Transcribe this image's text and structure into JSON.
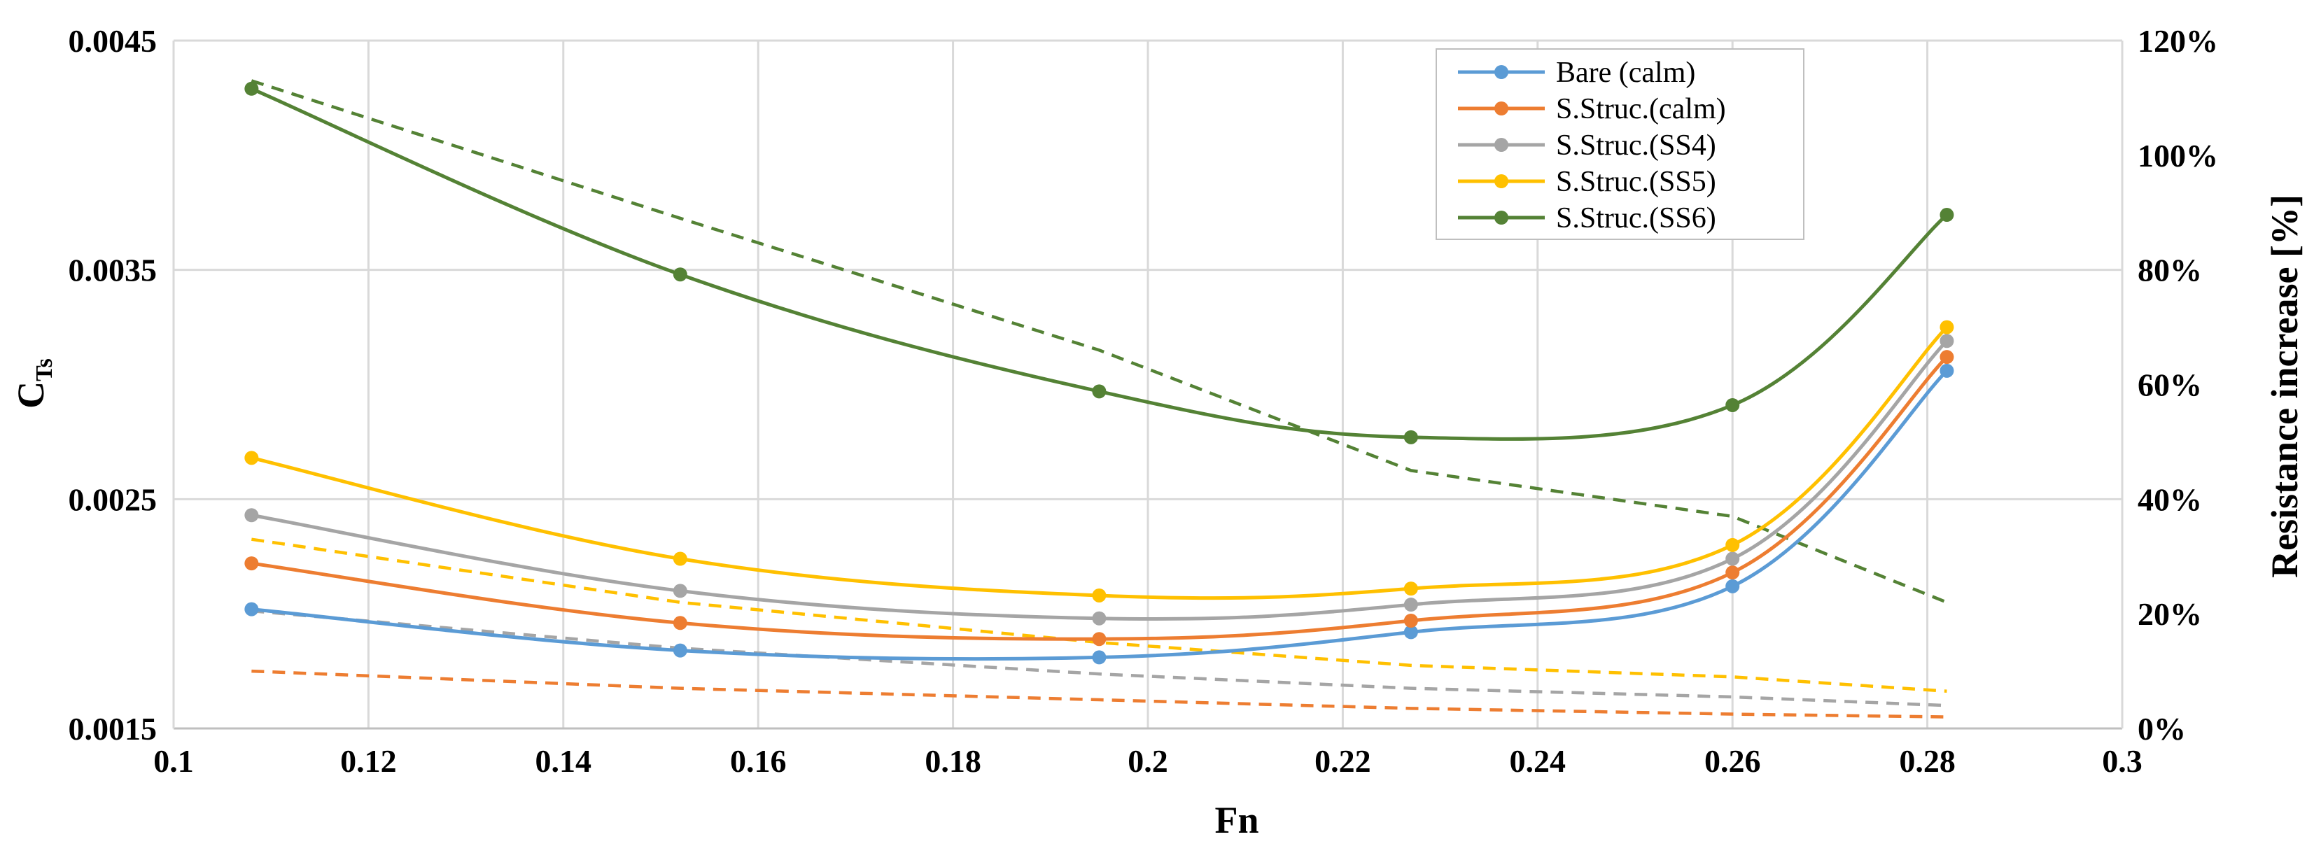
{
  "chart_data": {
    "type": "line",
    "x_axis": {
      "label": "Fn",
      "range": [
        0.1,
        0.3
      ],
      "ticks": [
        "0.1",
        "0.12",
        "0.14",
        "0.16",
        "0.18",
        "0.2",
        "0.22",
        "0.24",
        "0.26",
        "0.28",
        "0.3"
      ]
    },
    "y_left": {
      "label_main": "C",
      "label_sub": "Ts",
      "range": [
        0.0015,
        0.0045
      ],
      "ticks": [
        "0.0015",
        "0.0025",
        "0.0035",
        "0.0045"
      ]
    },
    "y_right": {
      "label": "Resistance increase [%]",
      "range": [
        0,
        120
      ],
      "ticks": [
        "0%",
        "20%",
        "40%",
        "60%",
        "80%",
        "100%",
        "120%"
      ]
    },
    "grid": true,
    "legend": {
      "placement": "top-right"
    },
    "series": [
      {
        "name": "Bare (calm)",
        "color": "#5b9bd5",
        "axis": "left",
        "style": "solid-markers",
        "x": [
          0.108,
          0.152,
          0.195,
          0.227,
          0.26,
          0.282
        ],
        "y": [
          0.00202,
          0.00184,
          0.00181,
          0.00192,
          0.00212,
          0.00306
        ]
      },
      {
        "name": "S.Struc.(calm)",
        "color": "#ed7d31",
        "axis": "left",
        "style": "solid-markers",
        "x": [
          0.108,
          0.152,
          0.195,
          0.227,
          0.26,
          0.282
        ],
        "y": [
          0.00222,
          0.00196,
          0.00189,
          0.00197,
          0.00218,
          0.00312
        ]
      },
      {
        "name": "S.Struc.(SS4)",
        "color": "#a5a5a5",
        "axis": "left",
        "style": "solid-markers",
        "x": [
          0.108,
          0.152,
          0.195,
          0.227,
          0.26,
          0.282
        ],
        "y": [
          0.00243,
          0.0021,
          0.00198,
          0.00204,
          0.00224,
          0.00319
        ]
      },
      {
        "name": "S.Struc.(SS5)",
        "color": "#ffc000",
        "axis": "left",
        "style": "solid-markers",
        "x": [
          0.108,
          0.152,
          0.195,
          0.227,
          0.26,
          0.282
        ],
        "y": [
          0.00268,
          0.00224,
          0.00208,
          0.00211,
          0.0023,
          0.00325
        ]
      },
      {
        "name": "S.Struc.(SS6)",
        "color": "#548235",
        "axis": "left",
        "style": "solid-markers",
        "x": [
          0.108,
          0.152,
          0.195,
          0.227,
          0.26,
          0.282
        ],
        "y": [
          0.00429,
          0.00348,
          0.00297,
          0.00277,
          0.00291,
          0.00374
        ]
      },
      {
        "color": "#ed7d31",
        "axis": "right",
        "style": "dashed",
        "x": [
          0.108,
          0.152,
          0.195,
          0.227,
          0.26,
          0.282
        ],
        "y": [
          10,
          7,
          5,
          3.5,
          2.5,
          2
        ]
      },
      {
        "color": "#a5a5a5",
        "axis": "right",
        "style": "dashed",
        "x": [
          0.108,
          0.152,
          0.195,
          0.227,
          0.26,
          0.282
        ],
        "y": [
          20.5,
          14,
          9.5,
          7,
          5.5,
          4
        ]
      },
      {
        "color": "#ffc000",
        "axis": "right",
        "style": "dashed",
        "x": [
          0.108,
          0.152,
          0.195,
          0.227,
          0.26,
          0.282
        ],
        "y": [
          33,
          22,
          15,
          11,
          9,
          6.5
        ]
      },
      {
        "color": "#548235",
        "axis": "right",
        "style": "dashed",
        "x": [
          0.108,
          0.152,
          0.195,
          0.227,
          0.26,
          0.282
        ],
        "y": [
          113,
          89,
          66,
          45,
          37,
          22
        ]
      }
    ]
  }
}
